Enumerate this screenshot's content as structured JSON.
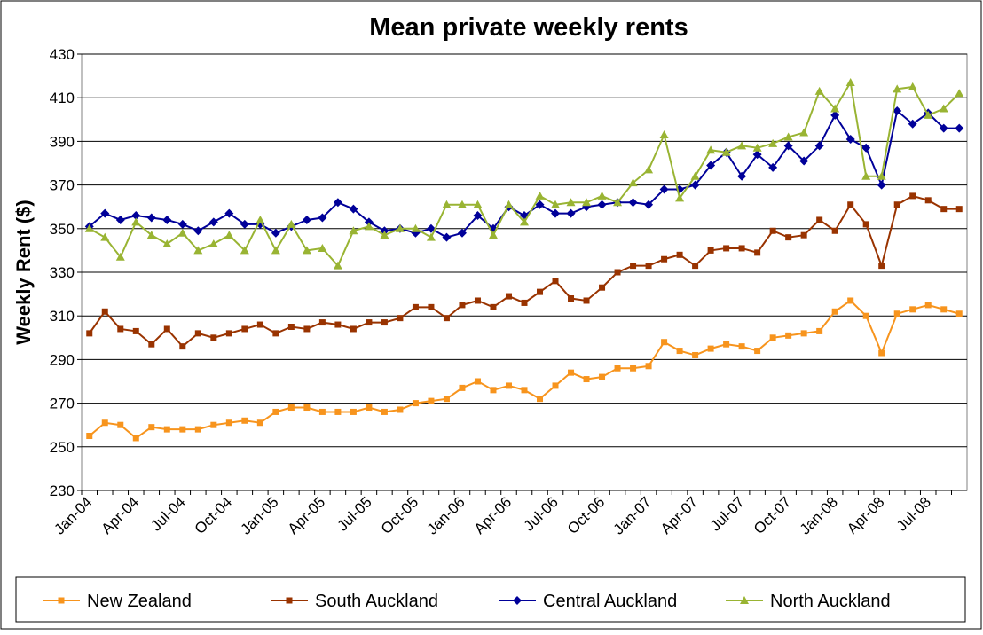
{
  "chart_data": {
    "type": "line",
    "title": "Mean private weekly rents",
    "y_label": "Weekly Rent ($)",
    "categories": [
      "Jan-04",
      null,
      null,
      "Apr-04",
      null,
      null,
      "Jul-04",
      null,
      null,
      "Oct-04",
      null,
      null,
      "Jan-05",
      null,
      null,
      "Apr-05",
      null,
      null,
      "Jul-05",
      null,
      null,
      "Oct-05",
      null,
      null,
      "Jan-06",
      null,
      null,
      "Apr-06",
      null,
      null,
      "Jul-06",
      null,
      null,
      "Oct-06",
      null,
      null,
      "Jan-07",
      null,
      null,
      "Apr-07",
      null,
      null,
      "Jul-07",
      null,
      null,
      "Oct-07",
      null,
      null,
      "Jan-08",
      null,
      null,
      "Apr-08",
      null,
      null,
      "Jul-08",
      null,
      null
    ],
    "series": [
      {
        "name": "New Zealand",
        "color": "#f7941d",
        "marker": "square",
        "values": [
          255,
          261,
          260,
          254,
          259,
          258,
          258,
          258,
          260,
          261,
          262,
          261,
          266,
          268,
          268,
          266,
          266,
          266,
          268,
          266,
          267,
          270,
          271,
          272,
          277,
          280,
          276,
          278,
          276,
          272,
          278,
          284,
          281,
          282,
          286,
          286,
          287,
          298,
          294,
          292,
          295,
          297,
          296,
          294,
          300,
          301,
          302,
          303,
          312,
          317,
          310,
          293,
          311,
          313,
          315,
          313,
          311
        ]
      },
      {
        "name": "South Auckland",
        "color": "#993300",
        "marker": "square",
        "values": [
          302,
          312,
          304,
          303,
          297,
          304,
          296,
          302,
          300,
          302,
          304,
          306,
          302,
          305,
          304,
          307,
          306,
          304,
          307,
          307,
          309,
          314,
          314,
          309,
          315,
          317,
          314,
          319,
          316,
          321,
          326,
          318,
          317,
          323,
          330,
          333,
          333,
          336,
          338,
          333,
          340,
          341,
          341,
          339,
          349,
          346,
          347,
          354,
          349,
          361,
          352,
          333,
          361,
          365,
          363,
          359,
          359
        ]
      },
      {
        "name": "Central Auckland",
        "color": "#000099",
        "marker": "diamond",
        "values": [
          351,
          357,
          354,
          356,
          355,
          354,
          352,
          349,
          353,
          357,
          352,
          352,
          348,
          351,
          354,
          355,
          362,
          359,
          353,
          349,
          350,
          348,
          350,
          346,
          348,
          356,
          350,
          360,
          356,
          361,
          357,
          357,
          360,
          361,
          362,
          362,
          361,
          368,
          368,
          370,
          379,
          385,
          374,
          384,
          378,
          388,
          381,
          388,
          402,
          391,
          387,
          370,
          404,
          398,
          403,
          396,
          396
        ]
      },
      {
        "name": "North Auckland",
        "color": "#99b433",
        "marker": "triangle",
        "values": [
          350,
          346,
          337,
          353,
          347,
          343,
          348,
          340,
          343,
          347,
          340,
          354,
          340,
          352,
          340,
          341,
          333,
          349,
          351,
          347,
          350,
          350,
          346,
          361,
          361,
          361,
          347,
          361,
          353,
          365,
          361,
          362,
          362,
          365,
          362,
          371,
          377,
          393,
          364,
          374,
          386,
          385,
          388,
          387,
          389,
          392,
          394,
          413,
          405,
          417,
          374,
          374,
          414,
          415,
          402,
          405,
          412
        ]
      }
    ],
    "ylim": [
      230,
      430
    ],
    "yticks": [
      230,
      250,
      270,
      290,
      310,
      330,
      350,
      370,
      390,
      410,
      430
    ],
    "grid": true,
    "legend": "bottom"
  }
}
